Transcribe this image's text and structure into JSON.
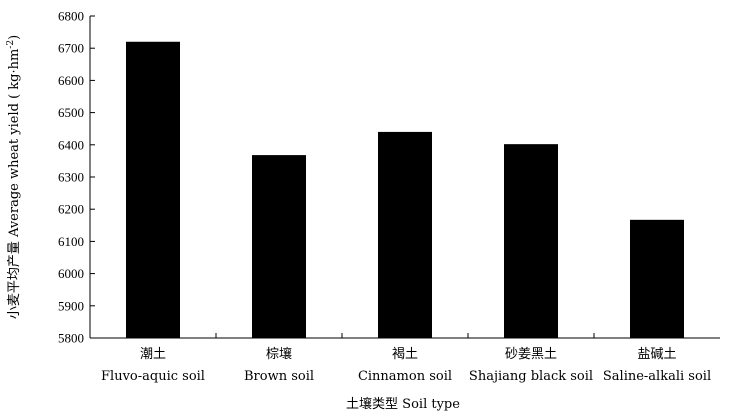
{
  "chart_data": {
    "type": "bar",
    "categories": [
      {
        "zh": "潮土",
        "en": "Fluvo-aquic soil"
      },
      {
        "zh": "棕壤",
        "en": "Brown soil"
      },
      {
        "zh": "褐土",
        "en": "Cinnamon soil"
      },
      {
        "zh": "砂姜黑土",
        "en": "Shajiang black soil"
      },
      {
        "zh": "盐碱土",
        "en": "Saline-alkali soil"
      }
    ],
    "values": [
      6720,
      6368,
      6440,
      6402,
      6167
    ],
    "ylabel": "小麦平均产量 Average  wheat yield ( kg·hm",
    "ylabel_sup": "-2",
    "ylabel_close": ")",
    "xlabel": "土壤类型 Soil type",
    "ylim": [
      5800,
      6800
    ],
    "yticks": [
      5800,
      5900,
      6000,
      6100,
      6200,
      6300,
      6400,
      6500,
      6600,
      6700,
      6800
    ],
    "grid": false,
    "bar_color": "#000000"
  }
}
